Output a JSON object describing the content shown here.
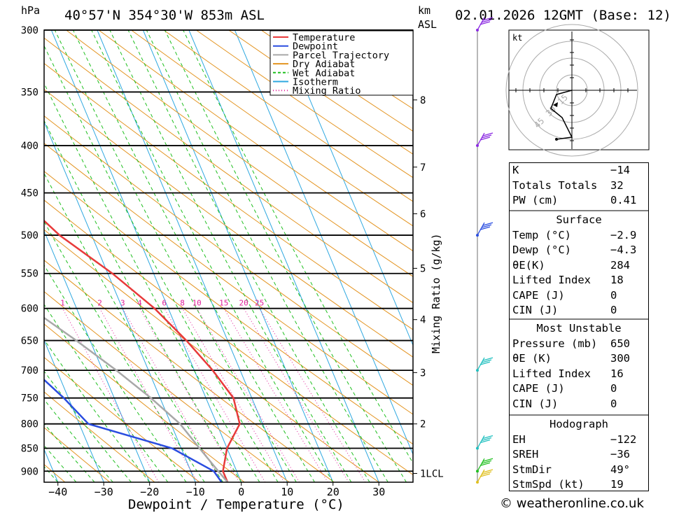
{
  "header": {
    "hpa": "hPa",
    "location": "40°57'N  354°30'W  853m  ASL",
    "km": "km",
    "asl": "ASL",
    "datetime": "02.01.2026  12GMT  (Base: 12)"
  },
  "footer": {
    "copyright": "© weatheronline.co.uk"
  },
  "chart_data": {
    "type": "line",
    "xlabel": "Dewpoint / Temperature (°C)",
    "ylabel": "hPa",
    "ylabel_right": "Mixing Ratio (g/kg)",
    "xlim": [
      -40,
      40
    ],
    "ylim": [
      300,
      925
    ],
    "x_ticks": [
      -40,
      -30,
      -20,
      -10,
      0,
      10,
      20,
      30
    ],
    "pressure_levels": [
      300,
      350,
      400,
      450,
      500,
      550,
      600,
      650,
      700,
      750,
      800,
      850,
      900
    ],
    "km_ticks": [
      {
        "label": "8",
        "p": 357
      },
      {
        "label": "7",
        "p": 422
      },
      {
        "label": "6",
        "p": 474
      },
      {
        "label": "5",
        "p": 543
      },
      {
        "label": "4",
        "p": 617
      },
      {
        "label": "3",
        "p": 704
      },
      {
        "label": "2",
        "p": 800
      },
      {
        "label": "1LCL",
        "p": 905
      }
    ],
    "mixing_ratio_labels": [
      "1",
      "2",
      "3",
      "4",
      "6",
      "8",
      "10",
      "15",
      "20",
      "25"
    ],
    "legend": [
      {
        "name": "Temperature",
        "color": "#e83a3a"
      },
      {
        "name": "Dewpoint",
        "color": "#2a4de0"
      },
      {
        "name": "Parcel Trajectory",
        "color": "#a8a8a8"
      },
      {
        "name": "Dry Adiabat",
        "color": "#e39421"
      },
      {
        "name": "Wet Adiabat",
        "color": "#1fbf1f"
      },
      {
        "name": "Isotherm",
        "color": "#2fa8e0"
      },
      {
        "name": "Mixing Ratio",
        "color": "#e0209a"
      }
    ],
    "series": [
      {
        "name": "Temperature",
        "color": "#e83a3a",
        "points": [
          [
            300,
            -42
          ],
          [
            350,
            -36
          ],
          [
            400,
            -30
          ],
          [
            450,
            -23
          ],
          [
            500,
            -17
          ],
          [
            550,
            -9
          ],
          [
            600,
            -3
          ],
          [
            650,
            1
          ],
          [
            700,
            4
          ],
          [
            750,
            6
          ],
          [
            800,
            5
          ],
          [
            850,
            0
          ],
          [
            900,
            -3
          ],
          [
            925,
            -3
          ]
        ]
      },
      {
        "name": "Dewpoint",
        "color": "#2a4de0",
        "points": [
          [
            300,
            -47
          ],
          [
            350,
            -44
          ],
          [
            400,
            -36
          ],
          [
            450,
            -30
          ],
          [
            500,
            -33
          ],
          [
            550,
            -38
          ],
          [
            600,
            -40
          ],
          [
            650,
            -40
          ],
          [
            700,
            -35
          ],
          [
            750,
            -31
          ],
          [
            800,
            -28
          ],
          [
            850,
            -12
          ],
          [
            900,
            -5
          ],
          [
            925,
            -4.3
          ]
        ]
      },
      {
        "name": "Parcel Trajectory",
        "color": "#a8a8a8",
        "points": [
          [
            300,
            -75
          ],
          [
            350,
            -66
          ],
          [
            400,
            -58
          ],
          [
            450,
            -51
          ],
          [
            500,
            -44
          ],
          [
            550,
            -36
          ],
          [
            600,
            -30
          ],
          [
            650,
            -23
          ],
          [
            700,
            -17
          ],
          [
            750,
            -12
          ],
          [
            800,
            -8
          ],
          [
            850,
            -6
          ],
          [
            900,
            -4
          ],
          [
            925,
            -3
          ]
        ]
      }
    ],
    "hodograph": {
      "unit": "kt",
      "ring_labels": [
        "15",
        "30",
        "45"
      ]
    },
    "wind_barb_colors": [
      "#8b2be2",
      "#8b2be2",
      "#2a4de0",
      "#22c0c0",
      "#22c0c0",
      "#22c022",
      "#e0c020"
    ]
  },
  "indices": {
    "rows": [
      {
        "k": "K",
        "v": "−14"
      },
      {
        "k": "Totals Totals",
        "v": "32"
      },
      {
        "k": "PW (cm)",
        "v": "0.41"
      }
    ],
    "surface": {
      "title": "Surface",
      "rows": [
        {
          "k": "Temp (°C)",
          "v": "−2.9"
        },
        {
          "k": "Dewp (°C)",
          "v": "−4.3"
        },
        {
          "k": "θE(K)",
          "v": "284"
        },
        {
          "k": "Lifted Index",
          "v": "18"
        },
        {
          "k": "CAPE (J)",
          "v": "0"
        },
        {
          "k": "CIN (J)",
          "v": "0"
        }
      ]
    },
    "unstable": {
      "title": "Most Unstable",
      "rows": [
        {
          "k": "Pressure (mb)",
          "v": "650"
        },
        {
          "k": "θE (K)",
          "v": "300"
        },
        {
          "k": "Lifted Index",
          "v": "16"
        },
        {
          "k": "CAPE (J)",
          "v": "0"
        },
        {
          "k": "CIN (J)",
          "v": "0"
        }
      ]
    },
    "hodograph": {
      "title": "Hodograph",
      "rows": [
        {
          "k": "EH",
          "v": "−122"
        },
        {
          "k": "SREH",
          "v": "−36"
        },
        {
          "k": "StmDir",
          "v": "49°"
        },
        {
          "k": "StmSpd (kt)",
          "v": "19"
        }
      ]
    }
  }
}
